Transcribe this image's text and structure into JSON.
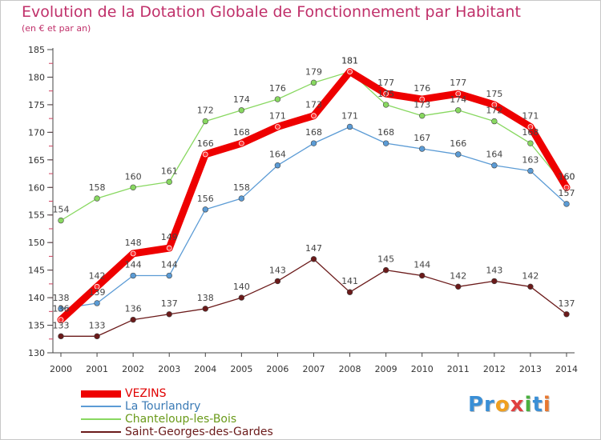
{
  "title": "Evolution de la Dotation Globale de Fonctionnement par Habitant",
  "subtitle": "(en € et par an)",
  "logo": {
    "parts": [
      "Pr",
      "o",
      "x",
      "i",
      "t",
      "i"
    ],
    "colors": [
      "#3a8fd6",
      "#f0a020",
      "#e04040",
      "#4ab040",
      "#3a8fd6",
      "#e87830"
    ]
  },
  "chart_data": {
    "type": "line",
    "x": [
      2000,
      2001,
      2002,
      2003,
      2004,
      2005,
      2006,
      2007,
      2008,
      2009,
      2010,
      2011,
      2012,
      2013,
      2014
    ],
    "ylim": [
      130,
      185
    ],
    "yticks": [
      130,
      135,
      140,
      145,
      150,
      155,
      160,
      165,
      170,
      175,
      180,
      185
    ],
    "grid": false,
    "legend_position": "bottom-left",
    "series": [
      {
        "name": "VEZINS",
        "color": "#ee0000",
        "values": [
          136,
          142,
          148,
          149,
          166,
          168,
          171,
          173,
          181,
          177,
          176,
          177,
          175,
          171,
          160
        ]
      },
      {
        "name": "La Tourlandry",
        "color": "#5b9bd5",
        "values": [
          138,
          139,
          144,
          144,
          156,
          158,
          164,
          168,
          171,
          168,
          167,
          166,
          164,
          163,
          157
        ]
      },
      {
        "name": "Chanteloup-les-Bois",
        "color": "#88d860",
        "values": [
          154,
          158,
          160,
          161,
          172,
          174,
          176,
          179,
          181,
          175,
          173,
          174,
          172,
          168,
          160
        ]
      },
      {
        "name": "Saint-Georges-des-Gardes",
        "color": "#6b1a1a",
        "values": [
          133,
          133,
          136,
          137,
          138,
          140,
          143,
          147,
          141,
          145,
          144,
          142,
          143,
          142,
          137
        ]
      }
    ]
  }
}
